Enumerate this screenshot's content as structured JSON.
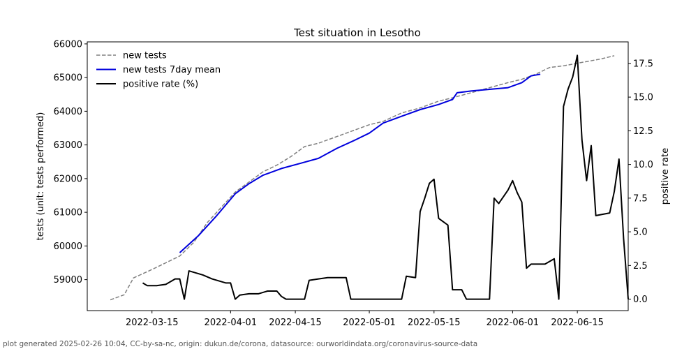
{
  "chart_data": {
    "type": "line",
    "title": "Test situation in Lesotho",
    "ylabel": "tests (unit: tests performed)",
    "y2label": "positive rate",
    "x_ticks": [
      "2022-03-15",
      "2022-04-01",
      "2022-04-15",
      "2022-05-01",
      "2022-05-15",
      "2022-06-01",
      "2022-06-15"
    ],
    "y_ticks": [
      59000,
      60000,
      61000,
      62000,
      63000,
      64000,
      65000,
      66000
    ],
    "y2_ticks": [
      "0.0",
      "2.5",
      "5.0",
      "7.5",
      "10.0",
      "12.5",
      "15.0",
      "17.5"
    ],
    "xlim": [
      "2022-03-01",
      "2022-06-26"
    ],
    "ylim": [
      58080,
      66060
    ],
    "y2lim": [
      -0.85,
      19.1
    ],
    "legend_placement": "upper-left",
    "grid": false,
    "series": [
      {
        "name": "new tests",
        "axis": "left",
        "style": "dashed",
        "color": "#808080",
        "points": [
          [
            "2022-03-06",
            58400
          ],
          [
            "2022-03-09",
            58550
          ],
          [
            "2022-03-11",
            59050
          ],
          [
            "2022-03-15",
            59300
          ],
          [
            "2022-03-18",
            59500
          ],
          [
            "2022-03-21",
            59700
          ],
          [
            "2022-03-24",
            60100
          ],
          [
            "2022-03-27",
            60700
          ],
          [
            "2022-03-30",
            61150
          ],
          [
            "2022-04-02",
            61600
          ],
          [
            "2022-04-05",
            61900
          ],
          [
            "2022-04-08",
            62200
          ],
          [
            "2022-04-11",
            62400
          ],
          [
            "2022-04-14",
            62650
          ],
          [
            "2022-04-17",
            62950
          ],
          [
            "2022-04-20",
            63050
          ],
          [
            "2022-04-24",
            63250
          ],
          [
            "2022-04-28",
            63450
          ],
          [
            "2022-05-01",
            63600
          ],
          [
            "2022-05-04",
            63700
          ],
          [
            "2022-05-08",
            63950
          ],
          [
            "2022-05-12",
            64100
          ],
          [
            "2022-05-16",
            64300
          ],
          [
            "2022-05-19",
            64400
          ],
          [
            "2022-05-23",
            64550
          ],
          [
            "2022-05-27",
            64700
          ],
          [
            "2022-05-31",
            64850
          ],
          [
            "2022-06-03",
            64950
          ],
          [
            "2022-06-06",
            65100
          ],
          [
            "2022-06-09",
            65300
          ],
          [
            "2022-06-12",
            65350
          ],
          [
            "2022-06-16",
            65450
          ],
          [
            "2022-06-20",
            65550
          ],
          [
            "2022-06-23",
            65650
          ]
        ]
      },
      {
        "name": "new tests 7day mean",
        "axis": "left",
        "style": "solid",
        "color": "#0000dd",
        "points": [
          [
            "2022-03-21",
            59800
          ],
          [
            "2022-03-25",
            60300
          ],
          [
            "2022-03-29",
            60900
          ],
          [
            "2022-04-02",
            61550
          ],
          [
            "2022-04-05",
            61850
          ],
          [
            "2022-04-08",
            62100
          ],
          [
            "2022-04-12",
            62300
          ],
          [
            "2022-04-16",
            62450
          ],
          [
            "2022-04-20",
            62600
          ],
          [
            "2022-04-24",
            62900
          ],
          [
            "2022-04-28",
            63150
          ],
          [
            "2022-05-01",
            63350
          ],
          [
            "2022-05-04",
            63650
          ],
          [
            "2022-05-08",
            63850
          ],
          [
            "2022-05-12",
            64050
          ],
          [
            "2022-05-16",
            64200
          ],
          [
            "2022-05-19",
            64350
          ],
          [
            "2022-05-20",
            64550
          ],
          [
            "2022-05-23",
            64600
          ],
          [
            "2022-05-27",
            64650
          ],
          [
            "2022-05-31",
            64700
          ],
          [
            "2022-06-03",
            64850
          ],
          [
            "2022-06-05",
            65050
          ],
          [
            "2022-06-07",
            65100
          ]
        ]
      },
      {
        "name": "positive rate (%)",
        "axis": "right",
        "style": "solid",
        "color": "#000000",
        "points": [
          [
            "2022-03-13",
            1.2
          ],
          [
            "2022-03-14",
            1.0
          ],
          [
            "2022-03-16",
            1.0
          ],
          [
            "2022-03-18",
            1.1
          ],
          [
            "2022-03-20",
            1.5
          ],
          [
            "2022-03-21",
            1.5
          ],
          [
            "2022-03-22",
            0.0
          ],
          [
            "2022-03-23",
            2.1
          ],
          [
            "2022-03-26",
            1.8
          ],
          [
            "2022-03-28",
            1.5
          ],
          [
            "2022-03-31",
            1.2
          ],
          [
            "2022-04-01",
            1.2
          ],
          [
            "2022-04-02",
            0.0
          ],
          [
            "2022-04-03",
            0.3
          ],
          [
            "2022-04-05",
            0.4
          ],
          [
            "2022-04-07",
            0.4
          ],
          [
            "2022-04-09",
            0.6
          ],
          [
            "2022-04-11",
            0.6
          ],
          [
            "2022-04-12",
            0.2
          ],
          [
            "2022-04-13",
            0.0
          ],
          [
            "2022-04-16",
            0.0
          ],
          [
            "2022-04-17",
            0.0
          ],
          [
            "2022-04-18",
            1.4
          ],
          [
            "2022-04-20",
            1.5
          ],
          [
            "2022-04-22",
            1.6
          ],
          [
            "2022-04-26",
            1.6
          ],
          [
            "2022-04-27",
            0.0
          ],
          [
            "2022-05-08",
            0.0
          ],
          [
            "2022-05-09",
            1.7
          ],
          [
            "2022-05-11",
            1.6
          ],
          [
            "2022-05-12",
            6.5
          ],
          [
            "2022-05-13",
            7.5
          ],
          [
            "2022-05-14",
            8.6
          ],
          [
            "2022-05-15",
            8.9
          ],
          [
            "2022-05-16",
            6.0
          ],
          [
            "2022-05-18",
            5.5
          ],
          [
            "2022-05-19",
            0.7
          ],
          [
            "2022-05-21",
            0.7
          ],
          [
            "2022-05-22",
            0.0
          ],
          [
            "2022-05-27",
            0.0
          ],
          [
            "2022-05-28",
            7.5
          ],
          [
            "2022-05-29",
            7.1
          ],
          [
            "2022-05-31",
            8.1
          ],
          [
            "2022-06-01",
            8.8
          ],
          [
            "2022-06-02",
            7.9
          ],
          [
            "2022-06-03",
            7.2
          ],
          [
            "2022-06-04",
            2.3
          ],
          [
            "2022-06-05",
            2.6
          ],
          [
            "2022-06-08",
            2.6
          ],
          [
            "2022-06-10",
            3.0
          ],
          [
            "2022-06-11",
            0.0
          ],
          [
            "2022-06-12",
            14.3
          ],
          [
            "2022-06-13",
            15.6
          ],
          [
            "2022-06-14",
            16.5
          ],
          [
            "2022-06-15",
            18.1
          ],
          [
            "2022-06-16",
            11.8
          ],
          [
            "2022-06-17",
            8.8
          ],
          [
            "2022-06-18",
            11.4
          ],
          [
            "2022-06-19",
            6.2
          ],
          [
            "2022-06-22",
            6.4
          ],
          [
            "2022-06-23",
            8.0
          ],
          [
            "2022-06-24",
            10.4
          ],
          [
            "2022-06-25",
            4.5
          ],
          [
            "2022-06-26",
            0.0
          ]
        ]
      }
    ]
  },
  "footer": "plot generated 2025-02-26 10:04, CC-by-sa-nc, origin: dukun.de/corona, datasource: ourworldindata.org/coronavirus-source-data"
}
